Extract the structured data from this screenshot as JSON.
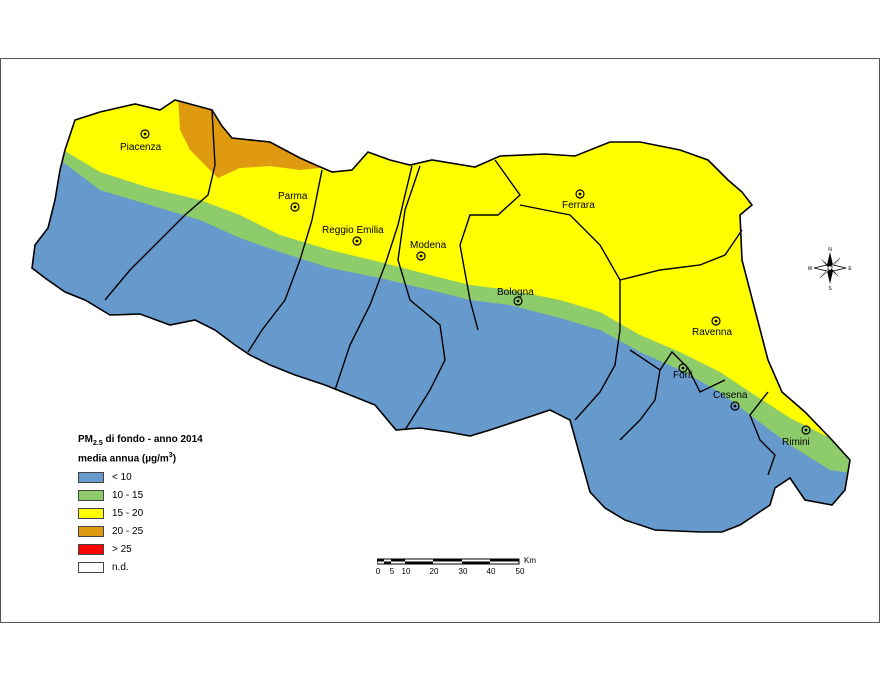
{
  "map": {
    "cities": [
      {
        "name": "Piacenza"
      },
      {
        "name": "Parma"
      },
      {
        "name": "Reggio Emilia"
      },
      {
        "name": "Modena"
      },
      {
        "name": "Ferrara"
      },
      {
        "name": "Bologna"
      },
      {
        "name": "Ravenna"
      },
      {
        "name": "Forlì"
      },
      {
        "name": "Cesena"
      },
      {
        "name": "Rimini"
      }
    ],
    "pollutant_levels": {
      "lowest": "< 10",
      "low": "10 - 15",
      "medium": "15 - 20",
      "high": "20 - 25"
    }
  },
  "legend": {
    "title_prefix": "PM",
    "title_sub": "2.5",
    "title_rest": " di fondo - anno 2014",
    "subtitle_prefix": "media annua (µg/m",
    "subtitle_sup": "3",
    "subtitle_suffix": ")",
    "items": [
      {
        "label": "< 10",
        "color": "#6699cc"
      },
      {
        "label": "10 - 15",
        "color": "#8ecb6a"
      },
      {
        "label": "15 - 20",
        "color": "#ffff00"
      },
      {
        "label": "20 - 25",
        "color": "#e09a10"
      },
      {
        "label": "> 25",
        "color": "#ff0000"
      },
      {
        "label": "n.d.",
        "color": "#ffffff"
      }
    ]
  },
  "scale_bar": {
    "ticks": [
      "0",
      "5",
      "10",
      "20",
      "30",
      "40",
      "50"
    ],
    "unit": "Km"
  },
  "compass": {
    "n": "N",
    "s": "S",
    "e": "E",
    "w": "W"
  }
}
